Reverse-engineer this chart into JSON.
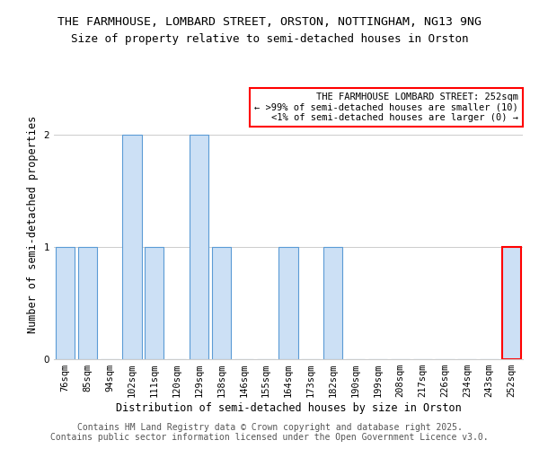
{
  "title": "THE FARMHOUSE, LOMBARD STREET, ORSTON, NOTTINGHAM, NG13 9NG",
  "subtitle": "Size of property relative to semi-detached houses in Orston",
  "xlabel": "Distribution of semi-detached houses by size in Orston",
  "ylabel": "Number of semi-detached properties",
  "categories": [
    "76sqm",
    "85sqm",
    "94sqm",
    "102sqm",
    "111sqm",
    "120sqm",
    "129sqm",
    "138sqm",
    "146sqm",
    "155sqm",
    "164sqm",
    "173sqm",
    "182sqm",
    "190sqm",
    "199sqm",
    "208sqm",
    "217sqm",
    "226sqm",
    "234sqm",
    "243sqm",
    "252sqm"
  ],
  "values": [
    1,
    1,
    0,
    2,
    1,
    0,
    2,
    1,
    0,
    0,
    1,
    0,
    1,
    0,
    0,
    0,
    0,
    0,
    0,
    0,
    1
  ],
  "bar_color": "#cce0f5",
  "bar_edge_color": "#5b9bd5",
  "highlight_index": 20,
  "highlight_edge_color": "#ff0000",
  "ylim": [
    0,
    2.4
  ],
  "yticks": [
    0,
    1,
    2
  ],
  "annotation_title": "THE FARMHOUSE LOMBARD STREET: 252sqm",
  "annotation_line1": "← >99% of semi-detached houses are smaller (10)",
  "annotation_line2": "<1% of semi-detached houses are larger (0) →",
  "annotation_box_color": "#ffffff",
  "annotation_box_edge": "#ff0000",
  "footer_line1": "Contains HM Land Registry data © Crown copyright and database right 2025.",
  "footer_line2": "Contains public sector information licensed under the Open Government Licence v3.0.",
  "title_fontsize": 9.5,
  "subtitle_fontsize": 9,
  "axis_label_fontsize": 8.5,
  "tick_fontsize": 7.5,
  "annotation_fontsize": 7.5,
  "footer_fontsize": 7
}
